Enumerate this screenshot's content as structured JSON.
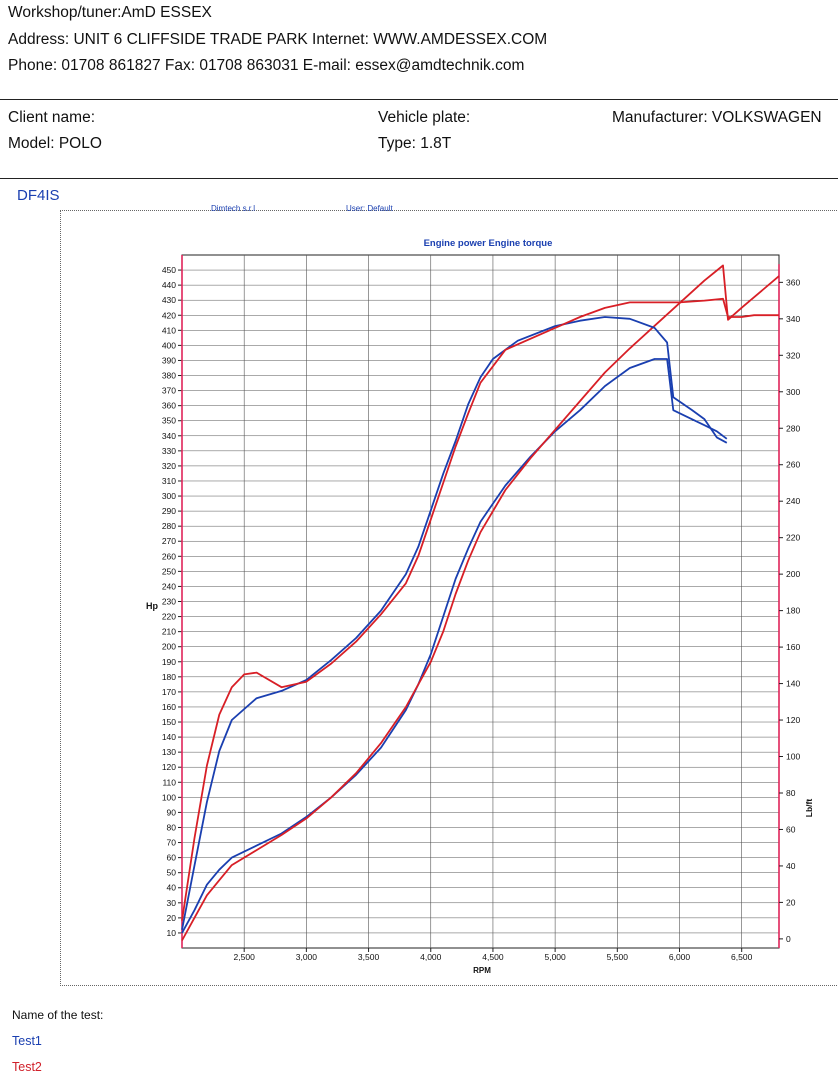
{
  "header": {
    "workshop": "Workshop/tuner:AmD ESSEX",
    "address": "Address: UNIT 6 CLIFFSIDE TRADE PARK Internet: WWW.AMDESSEX.COM",
    "phone": "Phone: 01708 861827 Fax: 01708 863031 E-mail: essex@amdtechnik.com"
  },
  "vehicle": {
    "client_label": "Client name:",
    "plate_label": "Vehicle plate:",
    "manufacturer": "Manufacturer: VOLKSWAGEN",
    "model": "Model: POLO",
    "type": "Type: 1.8T"
  },
  "dyno_code": "DF4IS",
  "chart_header": {
    "company": "Dimtech s.r.l",
    "user": "User: Default"
  },
  "footer": {
    "test_label": "Name of the test:",
    "tests": [
      "Test1",
      "Test2"
    ]
  },
  "colors": {
    "test1": "#1a3fb0",
    "test2": "#d81f26",
    "title": "#1a3fb0"
  },
  "chart_data": {
    "type": "line",
    "title": "Engine power Engine torque",
    "xlabel": "RPM",
    "ylabel_left": "Hp",
    "ylabel_right": "Lb/ft",
    "xlim": [
      2000,
      6800
    ],
    "ylim_left": [
      0,
      460
    ],
    "ylim_right": [
      -5,
      375
    ],
    "x_ticks": [
      2500,
      3000,
      3500,
      4000,
      4500,
      5000,
      5500,
      6000,
      6500
    ],
    "x_tick_labels": [
      "2,500",
      "3,000",
      "3,500",
      "4,000",
      "4,500",
      "5,000",
      "5,500",
      "6,000",
      "6,500"
    ],
    "y_left_ticks": [
      10,
      20,
      30,
      40,
      50,
      60,
      70,
      80,
      90,
      100,
      110,
      120,
      130,
      140,
      150,
      160,
      170,
      180,
      190,
      200,
      210,
      220,
      230,
      240,
      250,
      260,
      270,
      280,
      290,
      300,
      310,
      320,
      330,
      340,
      350,
      360,
      370,
      380,
      390,
      400,
      410,
      420,
      430,
      440,
      450
    ],
    "y_right_ticks": [
      0,
      20,
      40,
      60,
      80,
      100,
      120,
      140,
      160,
      180,
      200,
      220,
      240,
      260,
      280,
      300,
      320,
      340,
      360
    ],
    "grid": true,
    "series": [
      {
        "name": "Test1",
        "kind": "power",
        "axis": "left",
        "color": "#1a3fb0",
        "x": [
          2000,
          2100,
          2200,
          2300,
          2400,
          2600,
          2800,
          3000,
          3200,
          3400,
          3600,
          3800,
          3900,
          4000,
          4100,
          4200,
          4300,
          4400,
          4600,
          4800,
          5000,
          5200,
          5400,
          5600,
          5800,
          5900,
          5950,
          6100,
          6200,
          6300,
          6380
        ],
        "y": [
          10,
          25,
          42,
          52,
          60,
          68,
          76,
          87,
          100,
          115,
          133,
          158,
          175,
          195,
          220,
          245,
          265,
          283,
          307,
          326,
          343,
          357,
          373,
          385,
          391,
          391,
          357,
          351,
          347,
          343,
          338
        ]
      },
      {
        "name": "Test2",
        "kind": "power",
        "axis": "left",
        "color": "#d81f26",
        "x": [
          2000,
          2100,
          2200,
          2300,
          2400,
          2600,
          2800,
          3000,
          3200,
          3400,
          3600,
          3800,
          3900,
          4000,
          4100,
          4200,
          4300,
          4400,
          4600,
          4800,
          5000,
          5200,
          5400,
          5600,
          5800,
          6000,
          6200,
          6350,
          6390,
          6500,
          6600,
          6800
        ],
        "y": [
          5,
          20,
          35,
          45,
          55,
          65,
          75,
          86,
          100,
          116,
          136,
          160,
          175,
          190,
          210,
          235,
          257,
          276,
          304,
          325,
          344,
          363,
          382,
          398,
          413,
          428,
          443,
          453,
          417,
          425,
          432,
          446
        ]
      },
      {
        "name": "Test1",
        "kind": "torque",
        "axis": "right",
        "color": "#1a3fb0",
        "x": [
          2000,
          2100,
          2200,
          2300,
          2400,
          2600,
          2800,
          3000,
          3200,
          3400,
          3600,
          3800,
          3900,
          4000,
          4100,
          4200,
          4300,
          4400,
          4500,
          4700,
          5000,
          5200,
          5400,
          5600,
          5800,
          5900,
          5950,
          6100,
          6200,
          6300,
          6380
        ],
        "y": [
          5,
          40,
          75,
          103,
          120,
          132,
          136,
          142,
          153,
          165,
          180,
          200,
          215,
          235,
          255,
          273,
          293,
          308,
          318,
          328,
          336,
          339,
          341,
          340,
          335,
          327,
          297,
          290,
          285,
          275,
          272
        ]
      },
      {
        "name": "Test2",
        "kind": "torque",
        "axis": "right",
        "color": "#d81f26",
        "x": [
          2000,
          2100,
          2200,
          2300,
          2400,
          2500,
          2600,
          2800,
          3000,
          3200,
          3400,
          3600,
          3800,
          3900,
          4000,
          4100,
          4200,
          4300,
          4400,
          4600,
          5000,
          5200,
          5400,
          5600,
          5800,
          6000,
          6200,
          6350,
          6390,
          6500,
          6600,
          6800
        ],
        "y": [
          10,
          55,
          95,
          123,
          138,
          145,
          146,
          138,
          141,
          151,
          163,
          178,
          195,
          210,
          230,
          250,
          270,
          288,
          305,
          323,
          335,
          341,
          346,
          349,
          349,
          349,
          350,
          351,
          341,
          341,
          342,
          342
        ]
      }
    ]
  }
}
